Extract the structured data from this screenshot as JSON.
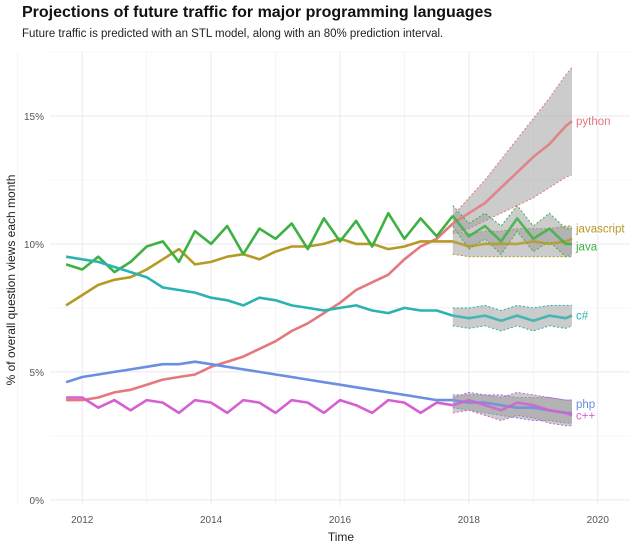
{
  "chart_data": {
    "type": "line",
    "title": "Projections of future traffic for major programming languages",
    "subtitle": "Future traffic is predicted with an STL model, along with an 80% prediction interval.",
    "xlabel": "Time",
    "ylabel": "% of overall question views each month",
    "xlim": [
      2011.5,
      2020.5
    ],
    "ylim": [
      -0.2,
      17.5
    ],
    "x_ticks": [
      2012,
      2014,
      2016,
      2018,
      2020
    ],
    "x_tick_labels": [
      "2012",
      "2014",
      "2016",
      "2018",
      "2020"
    ],
    "y_ticks": [
      0,
      5,
      10,
      15
    ],
    "y_tick_labels": [
      "0%",
      "5%",
      "10%",
      "15%"
    ],
    "grid": true,
    "legend": "direct labels at right end of each line",
    "forecast_start": 2017.75,
    "series": [
      {
        "name": "python",
        "color": "#e4787d",
        "observed": {
          "x": [
            2011.75,
            2012.0,
            2012.25,
            2012.5,
            2012.75,
            2013.0,
            2013.25,
            2013.5,
            2013.75,
            2014.0,
            2014.25,
            2014.5,
            2014.75,
            2015.0,
            2015.25,
            2015.5,
            2015.75,
            2016.0,
            2016.25,
            2016.5,
            2016.75,
            2017.0,
            2017.25,
            2017.5,
            2017.75
          ],
          "y": [
            3.9,
            3.9,
            4.0,
            4.2,
            4.3,
            4.5,
            4.7,
            4.8,
            4.9,
            5.2,
            5.4,
            5.6,
            5.9,
            6.2,
            6.6,
            6.9,
            7.3,
            7.7,
            8.2,
            8.5,
            8.8,
            9.4,
            9.9,
            10.2,
            10.8
          ]
        },
        "forecast": {
          "x": [
            2017.75,
            2018.0,
            2018.25,
            2018.5,
            2018.75,
            2019.0,
            2019.25,
            2019.5,
            2019.6
          ],
          "y": [
            10.8,
            11.2,
            11.6,
            12.2,
            12.8,
            13.4,
            13.9,
            14.6,
            14.8
          ],
          "lower": [
            10.4,
            10.6,
            10.9,
            11.2,
            11.5,
            11.8,
            12.2,
            12.6,
            12.7
          ],
          "upper": [
            11.1,
            11.8,
            12.5,
            13.3,
            14.1,
            14.9,
            15.7,
            16.6,
            16.9
          ]
        }
      },
      {
        "name": "javascript",
        "color": "#b59a24",
        "observed": {
          "x": [
            2011.75,
            2012.0,
            2012.25,
            2012.5,
            2012.75,
            2013.0,
            2013.25,
            2013.5,
            2013.75,
            2014.0,
            2014.25,
            2014.5,
            2014.75,
            2015.0,
            2015.25,
            2015.5,
            2015.75,
            2016.0,
            2016.25,
            2016.5,
            2016.75,
            2017.0,
            2017.25,
            2017.5,
            2017.75
          ],
          "y": [
            7.6,
            8.0,
            8.4,
            8.6,
            8.7,
            9.0,
            9.4,
            9.8,
            9.2,
            9.3,
            9.5,
            9.6,
            9.4,
            9.7,
            9.9,
            9.9,
            10.0,
            10.2,
            10.0,
            10.0,
            9.8,
            9.9,
            10.1,
            10.1,
            10.1
          ]
        },
        "forecast": {
          "x": [
            2017.75,
            2018.0,
            2018.25,
            2018.5,
            2018.75,
            2019.0,
            2019.25,
            2019.5,
            2019.6
          ],
          "y": [
            10.1,
            9.9,
            10.0,
            10.0,
            10.0,
            10.1,
            10.0,
            10.1,
            10.2
          ],
          "lower": [
            9.6,
            9.5,
            9.5,
            9.5,
            9.5,
            9.5,
            9.5,
            9.5,
            9.6
          ],
          "upper": [
            10.5,
            10.4,
            10.5,
            10.5,
            10.6,
            10.6,
            10.6,
            10.7,
            10.7
          ]
        }
      },
      {
        "name": "java",
        "color": "#3db142",
        "observed": {
          "x": [
            2011.75,
            2012.0,
            2012.25,
            2012.5,
            2012.75,
            2013.0,
            2013.25,
            2013.5,
            2013.75,
            2014.0,
            2014.25,
            2014.5,
            2014.75,
            2015.0,
            2015.25,
            2015.5,
            2015.75,
            2016.0,
            2016.25,
            2016.5,
            2016.75,
            2017.0,
            2017.25,
            2017.5,
            2017.75
          ],
          "y": [
            9.2,
            9.0,
            9.5,
            8.9,
            9.3,
            9.9,
            10.1,
            9.3,
            10.5,
            10.0,
            10.7,
            9.6,
            10.6,
            10.2,
            10.8,
            9.8,
            11.0,
            10.1,
            10.9,
            9.9,
            11.2,
            10.2,
            11.0,
            10.3,
            11.1
          ]
        },
        "forecast": {
          "x": [
            2017.75,
            2018.0,
            2018.25,
            2018.5,
            2018.75,
            2019.0,
            2019.25,
            2019.5,
            2019.6
          ],
          "y": [
            11.1,
            10.3,
            10.7,
            10.1,
            11.0,
            10.2,
            10.6,
            10.0,
            10.0
          ],
          "lower": [
            10.7,
            9.8,
            10.2,
            9.6,
            10.5,
            9.7,
            10.1,
            9.5,
            9.5
          ],
          "upper": [
            11.5,
            10.8,
            11.2,
            10.7,
            11.5,
            10.7,
            11.2,
            10.6,
            10.6
          ]
        }
      },
      {
        "name": "c#",
        "color": "#2ab3b0",
        "observed": {
          "x": [
            2011.75,
            2012.0,
            2012.25,
            2012.5,
            2012.75,
            2013.0,
            2013.25,
            2013.5,
            2013.75,
            2014.0,
            2014.25,
            2014.5,
            2014.75,
            2015.0,
            2015.25,
            2015.5,
            2015.75,
            2016.0,
            2016.25,
            2016.5,
            2016.75,
            2017.0,
            2017.25,
            2017.5,
            2017.75
          ],
          "y": [
            9.5,
            9.4,
            9.3,
            9.1,
            8.9,
            8.7,
            8.3,
            8.2,
            8.1,
            7.9,
            7.8,
            7.6,
            7.9,
            7.8,
            7.6,
            7.5,
            7.4,
            7.5,
            7.6,
            7.4,
            7.3,
            7.5,
            7.4,
            7.4,
            7.2
          ]
        },
        "forecast": {
          "x": [
            2017.75,
            2018.0,
            2018.25,
            2018.5,
            2018.75,
            2019.0,
            2019.25,
            2019.5,
            2019.6
          ],
          "y": [
            7.2,
            7.1,
            7.2,
            7.0,
            7.2,
            7.0,
            7.2,
            7.1,
            7.2
          ],
          "lower": [
            6.8,
            6.7,
            6.8,
            6.6,
            6.8,
            6.6,
            6.8,
            6.7,
            6.8
          ],
          "upper": [
            7.5,
            7.5,
            7.6,
            7.4,
            7.6,
            7.5,
            7.6,
            7.6,
            7.6
          ]
        }
      },
      {
        "name": "php",
        "color": "#6a8ee0",
        "observed": {
          "x": [
            2011.75,
            2012.0,
            2012.25,
            2012.5,
            2012.75,
            2013.0,
            2013.25,
            2013.5,
            2013.75,
            2014.0,
            2014.25,
            2014.5,
            2014.75,
            2015.0,
            2015.25,
            2015.5,
            2015.75,
            2016.0,
            2016.25,
            2016.5,
            2016.75,
            2017.0,
            2017.25,
            2017.5,
            2017.75
          ],
          "y": [
            4.6,
            4.8,
            4.9,
            5.0,
            5.1,
            5.2,
            5.3,
            5.3,
            5.4,
            5.3,
            5.2,
            5.1,
            5.0,
            4.9,
            4.8,
            4.7,
            4.6,
            4.5,
            4.4,
            4.3,
            4.2,
            4.1,
            4.0,
            3.9,
            3.9
          ]
        },
        "forecast": {
          "x": [
            2017.75,
            2018.0,
            2018.25,
            2018.5,
            2018.75,
            2019.0,
            2019.25,
            2019.5,
            2019.6
          ],
          "y": [
            3.9,
            3.8,
            3.8,
            3.7,
            3.6,
            3.6,
            3.5,
            3.4,
            3.4
          ],
          "lower": [
            3.6,
            3.5,
            3.4,
            3.3,
            3.2,
            3.1,
            3.1,
            3.0,
            3.0
          ],
          "upper": [
            4.1,
            4.1,
            4.1,
            4.1,
            4.0,
            4.0,
            4.0,
            3.9,
            3.9
          ]
        }
      },
      {
        "name": "c++",
        "color": "#d65fd2",
        "observed": {
          "x": [
            2011.75,
            2012.0,
            2012.25,
            2012.5,
            2012.75,
            2013.0,
            2013.25,
            2013.5,
            2013.75,
            2014.0,
            2014.25,
            2014.5,
            2014.75,
            2015.0,
            2015.25,
            2015.5,
            2015.75,
            2016.0,
            2016.25,
            2016.5,
            2016.75,
            2017.0,
            2017.25,
            2017.5,
            2017.75
          ],
          "y": [
            4.0,
            4.0,
            3.6,
            3.9,
            3.5,
            3.9,
            3.8,
            3.4,
            3.9,
            3.8,
            3.4,
            3.9,
            3.8,
            3.4,
            3.9,
            3.8,
            3.4,
            3.9,
            3.7,
            3.4,
            3.9,
            3.8,
            3.4,
            3.8,
            3.7
          ]
        },
        "forecast": {
          "x": [
            2017.75,
            2018.0,
            2018.25,
            2018.5,
            2018.75,
            2019.0,
            2019.25,
            2019.5,
            2019.6
          ],
          "y": [
            3.7,
            3.9,
            3.7,
            3.5,
            3.8,
            3.7,
            3.5,
            3.4,
            3.3
          ],
          "lower": [
            3.4,
            3.5,
            3.3,
            3.1,
            3.3,
            3.2,
            3.0,
            2.9,
            2.9
          ],
          "upper": [
            4.0,
            4.2,
            4.1,
            4.0,
            4.2,
            4.1,
            4.0,
            3.9,
            3.9
          ]
        }
      }
    ]
  }
}
